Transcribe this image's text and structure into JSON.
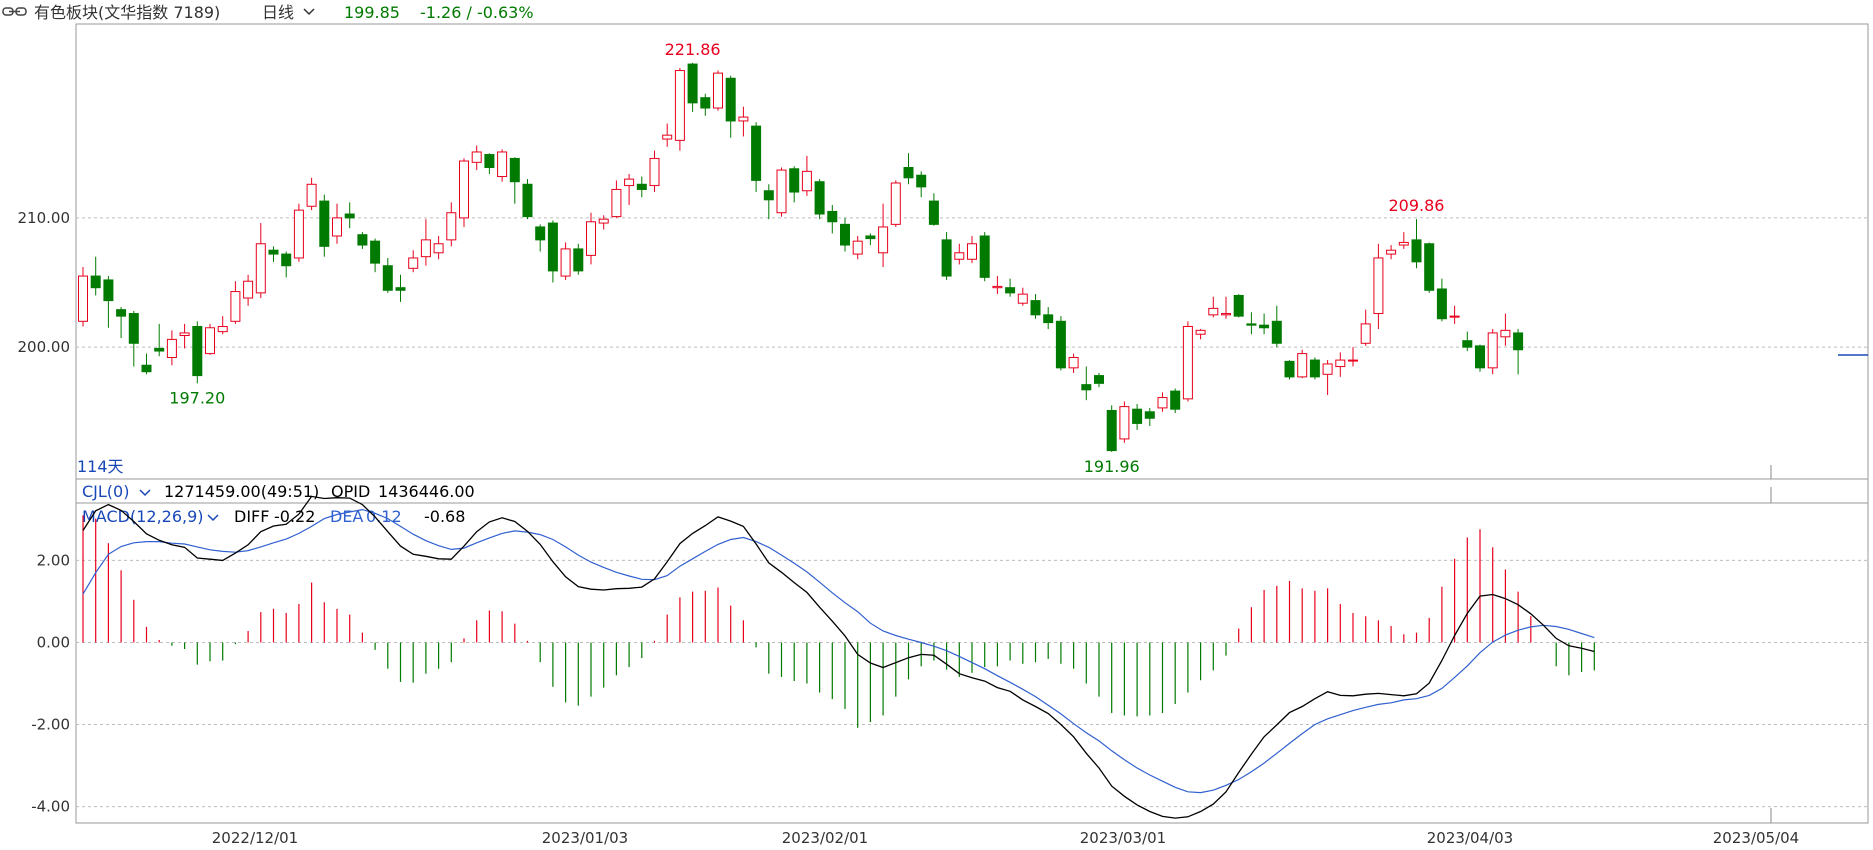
{
  "header": {
    "title": "有色板块(文华指数  7189)",
    "period": "日线",
    "last_price": "199.85",
    "change": "-1.26 / -0.63%"
  },
  "colors": {
    "up": "#e8001c",
    "down": "#007a00",
    "grid": "#bdbdbd",
    "diff_line": "#000000",
    "dea_line": "#3060d0",
    "label_blue": "#1848b8"
  },
  "price_panel": {
    "y_ticks": [
      "210.00",
      "200.00"
    ],
    "days_label": "114天",
    "annotations": {
      "high1": "221.86",
      "low1": "197.20",
      "low2": "191.96",
      "high2": "209.86"
    }
  },
  "volume_legend": {
    "name": "CJL(0)",
    "value": "1271459.00(49:51)",
    "opid_label": "OPID",
    "opid_value": "1436446.00"
  },
  "macd_panel": {
    "name": "MACD(12,26,9)",
    "diff_label": "DIFF",
    "diff_value": "-0.22",
    "dea_label": "DEA",
    "dea_value": "0.12",
    "macd_value": "-0.68",
    "y_ticks": [
      "2.00",
      "0.00",
      "-2.00",
      "-4.00"
    ]
  },
  "x_ticks": [
    "2022/12/01",
    "2023/01/03",
    "2023/02/01",
    "2023/03/01",
    "2023/04/03",
    "2023/05/04"
  ],
  "chart_data": {
    "type": "candlestick",
    "price_axis": {
      "min": 189.8,
      "max": 225.0
    },
    "macd_axis": {
      "min": -4.4,
      "max": 3.4
    },
    "candles": [
      [
        202.0,
        205.5,
        206.2,
        201.6
      ],
      [
        205.5,
        204.6,
        207.0,
        204.0
      ],
      [
        205.2,
        203.6,
        205.5,
        201.5
      ],
      [
        202.9,
        202.4,
        203.1,
        200.7
      ],
      [
        202.6,
        200.3,
        202.8,
        198.5
      ],
      [
        198.6,
        198.1,
        199.5,
        197.9
      ],
      [
        199.9,
        199.7,
        201.8,
        199.3
      ],
      [
        199.2,
        200.6,
        201.3,
        198.6
      ],
      [
        200.9,
        201.1,
        201.8,
        199.9
      ],
      [
        201.6,
        197.8,
        202.0,
        197.2
      ],
      [
        199.5,
        201.5,
        201.8,
        199.4
      ],
      [
        201.2,
        201.6,
        202.4,
        201.0
      ],
      [
        202.0,
        204.3,
        205.1,
        201.8
      ],
      [
        203.8,
        205.1,
        205.6,
        203.2
      ],
      [
        204.2,
        208.0,
        209.6,
        203.8
      ],
      [
        207.5,
        207.2,
        207.8,
        206.6
      ],
      [
        207.2,
        206.3,
        207.4,
        205.4
      ],
      [
        206.9,
        210.6,
        211.1,
        206.6
      ],
      [
        210.9,
        212.6,
        213.1,
        210.6
      ],
      [
        211.3,
        207.8,
        211.8,
        207.0
      ],
      [
        208.6,
        210.0,
        211.1,
        208.0
      ],
      [
        210.3,
        210.0,
        211.2,
        209.2
      ],
      [
        208.7,
        207.9,
        208.9,
        207.6
      ],
      [
        208.2,
        206.5,
        208.4,
        205.8
      ],
      [
        206.3,
        204.4,
        206.9,
        204.2
      ],
      [
        204.6,
        204.4,
        205.6,
        203.5
      ],
      [
        206.1,
        206.9,
        207.5,
        205.8
      ],
      [
        207.0,
        208.3,
        209.9,
        206.3
      ],
      [
        207.3,
        208.0,
        208.6,
        206.8
      ],
      [
        208.3,
        210.4,
        211.2,
        207.8
      ],
      [
        210.0,
        214.4,
        214.6,
        209.3
      ],
      [
        214.3,
        215.1,
        215.6,
        213.7
      ],
      [
        214.9,
        213.9,
        215.0,
        213.4
      ],
      [
        213.2,
        215.1,
        215.3,
        212.8
      ],
      [
        214.6,
        212.8,
        214.7,
        211.1
      ],
      [
        212.6,
        210.1,
        213.0,
        209.9
      ],
      [
        209.3,
        208.3,
        209.5,
        207.4
      ],
      [
        209.6,
        205.9,
        209.8,
        205.0
      ],
      [
        205.5,
        207.6,
        208.1,
        205.2
      ],
      [
        207.6,
        205.9,
        208.0,
        205.6
      ],
      [
        207.1,
        209.7,
        210.4,
        206.4
      ],
      [
        209.6,
        209.9,
        210.2,
        209.1
      ],
      [
        210.1,
        212.2,
        212.9,
        210.0
      ],
      [
        212.5,
        213.0,
        213.4,
        211.0
      ],
      [
        212.6,
        212.2,
        213.2,
        211.6
      ],
      [
        212.5,
        214.6,
        215.2,
        212.0
      ],
      [
        216.1,
        216.4,
        217.3,
        215.5
      ],
      [
        216.0,
        221.4,
        221.6,
        215.2
      ],
      [
        221.9,
        218.9,
        222.0,
        218.2
      ],
      [
        219.3,
        218.5,
        219.6,
        217.9
      ],
      [
        218.5,
        221.2,
        221.4,
        218.3
      ],
      [
        220.8,
        217.5,
        221.0,
        216.2
      ],
      [
        217.5,
        217.8,
        218.6,
        216.3
      ],
      [
        217.1,
        212.9,
        217.4,
        212.0
      ],
      [
        212.1,
        211.4,
        212.6,
        209.9
      ],
      [
        210.4,
        213.7,
        213.9,
        210.1
      ],
      [
        213.8,
        212.0,
        214.0,
        211.2
      ],
      [
        212.1,
        213.6,
        214.8,
        211.7
      ],
      [
        212.8,
        210.3,
        213.0,
        209.9
      ],
      [
        210.5,
        209.7,
        211.0,
        208.8
      ],
      [
        209.5,
        207.9,
        210.0,
        207.4
      ],
      [
        207.2,
        208.2,
        208.6,
        206.8
      ],
      [
        208.6,
        208.4,
        208.8,
        207.9
      ],
      [
        207.3,
        209.3,
        211.1,
        206.2
      ],
      [
        209.5,
        212.7,
        212.9,
        209.3
      ],
      [
        213.9,
        213.1,
        215.0,
        212.6
      ],
      [
        213.3,
        212.4,
        213.6,
        211.6
      ],
      [
        211.3,
        209.5,
        211.9,
        209.4
      ],
      [
        208.3,
        205.5,
        208.9,
        205.2
      ],
      [
        206.8,
        207.3,
        208.0,
        206.4
      ],
      [
        206.8,
        208.0,
        208.6,
        206.5
      ],
      [
        208.6,
        205.4,
        208.9,
        205.1
      ],
      [
        204.6,
        204.7,
        205.5,
        204.1
      ],
      [
        204.6,
        204.2,
        205.3,
        203.9
      ],
      [
        203.4,
        204.1,
        204.6,
        203.2
      ],
      [
        203.6,
        202.5,
        204.1,
        202.2
      ],
      [
        202.5,
        201.9,
        203.1,
        201.4
      ],
      [
        202.0,
        198.4,
        202.4,
        198.2
      ],
      [
        198.4,
        199.2,
        199.5,
        198.0
      ],
      [
        197.1,
        196.7,
        198.5,
        195.9
      ],
      [
        197.8,
        197.2,
        198.0,
        196.9
      ],
      [
        195.1,
        192.0,
        195.5,
        191.9
      ],
      [
        192.9,
        195.4,
        195.8,
        192.6
      ],
      [
        195.2,
        194.1,
        195.6,
        193.6
      ],
      [
        195.0,
        194.5,
        195.3,
        193.9
      ],
      [
        195.3,
        196.1,
        196.5,
        195.0
      ],
      [
        196.6,
        195.2,
        196.8,
        194.9
      ],
      [
        196.0,
        201.6,
        202.0,
        195.8
      ],
      [
        201.0,
        201.3,
        201.4,
        200.6
      ],
      [
        202.5,
        203.0,
        203.9,
        202.3
      ],
      [
        202.5,
        202.6,
        203.9,
        202.2
      ],
      [
        204.0,
        202.4,
        204.1,
        202.3
      ],
      [
        201.8,
        201.7,
        202.7,
        201.0
      ],
      [
        201.7,
        201.5,
        202.6,
        201.0
      ],
      [
        202.0,
        200.3,
        203.2,
        200.0
      ],
      [
        198.9,
        197.7,
        199.0,
        197.5
      ],
      [
        197.7,
        199.5,
        199.8,
        197.6
      ],
      [
        199.0,
        197.7,
        199.2,
        197.5
      ],
      [
        197.9,
        198.7,
        199.0,
        196.3
      ],
      [
        198.5,
        199.0,
        199.6,
        197.7
      ],
      [
        199.0,
        199.0,
        200.0,
        198.5
      ],
      [
        200.3,
        201.8,
        202.9,
        200.1
      ],
      [
        202.6,
        206.9,
        208.0,
        201.4
      ],
      [
        207.2,
        207.5,
        207.9,
        206.8
      ],
      [
        207.9,
        208.1,
        208.9,
        207.6
      ],
      [
        208.3,
        206.6,
        209.9,
        206.1
      ],
      [
        208.0,
        204.4,
        208.1,
        204.2
      ],
      [
        204.5,
        202.2,
        205.3,
        202.0
      ],
      [
        202.4,
        202.4,
        203.2,
        201.8
      ],
      [
        200.5,
        200.0,
        201.2,
        199.7
      ],
      [
        200.1,
        198.4,
        200.2,
        198.1
      ],
      [
        198.4,
        201.1,
        201.4,
        197.9
      ],
      [
        200.8,
        201.3,
        202.6,
        200.1
      ],
      [
        201.1,
        199.8,
        201.4,
        197.9
      ]
    ],
    "macd": {
      "diff": [
        2.73,
        3.21,
        3.36,
        3.22,
        2.95,
        2.65,
        2.49,
        2.38,
        2.32,
        2.06,
        2.03,
        2.0,
        2.18,
        2.38,
        2.7,
        2.84,
        2.88,
        3.13,
        3.56,
        3.51,
        3.53,
        3.52,
        3.36,
        3.06,
        2.7,
        2.35,
        2.15,
        2.1,
        2.04,
        2.03,
        2.35,
        2.7,
        2.94,
        3.04,
        2.95,
        2.71,
        2.39,
        1.97,
        1.6,
        1.36,
        1.3,
        1.28,
        1.31,
        1.32,
        1.35,
        1.55,
        1.97,
        2.41,
        2.66,
        2.85,
        3.06,
        2.96,
        2.83,
        2.4,
        1.94,
        1.71,
        1.46,
        1.22,
        0.86,
        0.52,
        0.16,
        -0.29,
        -0.5,
        -0.61,
        -0.49,
        -0.37,
        -0.29,
        -0.31,
        -0.53,
        -0.76,
        -0.86,
        -0.94,
        -1.1,
        -1.19,
        -1.4,
        -1.56,
        -1.73,
        -2.0,
        -2.3,
        -2.7,
        -3.06,
        -3.5,
        -3.75,
        -3.96,
        -4.12,
        -4.24,
        -4.28,
        -4.25,
        -4.12,
        -3.94,
        -3.64,
        -3.17,
        -2.72,
        -2.3,
        -2.01,
        -1.71,
        -1.56,
        -1.37,
        -1.2,
        -1.29,
        -1.3,
        -1.26,
        -1.24,
        -1.27,
        -1.3,
        -1.25,
        -0.99,
        -0.44,
        0.17,
        0.71,
        1.13,
        1.17,
        1.07,
        0.92,
        0.7,
        0.42,
        0.1,
        -0.08,
        -0.14,
        -0.22
      ],
      "dea": [
        1.18,
        1.7,
        2.15,
        2.34,
        2.43,
        2.46,
        2.46,
        2.42,
        2.4,
        2.33,
        2.26,
        2.22,
        2.2,
        2.24,
        2.33,
        2.43,
        2.52,
        2.66,
        2.83,
        3.02,
        3.12,
        3.18,
        3.24,
        3.15,
        3.02,
        2.83,
        2.64,
        2.48,
        2.36,
        2.27,
        2.3,
        2.43,
        2.55,
        2.66,
        2.72,
        2.69,
        2.63,
        2.51,
        2.33,
        2.13,
        1.96,
        1.83,
        1.71,
        1.62,
        1.54,
        1.53,
        1.63,
        1.86,
        2.04,
        2.22,
        2.39,
        2.51,
        2.56,
        2.46,
        2.32,
        2.13,
        1.93,
        1.72,
        1.47,
        1.21,
        0.97,
        0.75,
        0.47,
        0.28,
        0.17,
        0.08,
        0.0,
        -0.09,
        -0.2,
        -0.34,
        -0.49,
        -0.64,
        -0.81,
        -0.97,
        -1.14,
        -1.32,
        -1.53,
        -1.74,
        -1.98,
        -2.2,
        -2.4,
        -2.64,
        -2.86,
        -3.06,
        -3.23,
        -3.38,
        -3.53,
        -3.64,
        -3.66,
        -3.6,
        -3.48,
        -3.34,
        -3.15,
        -2.94,
        -2.7,
        -2.46,
        -2.22,
        -2.0,
        -1.86,
        -1.76,
        -1.66,
        -1.58,
        -1.51,
        -1.47,
        -1.4,
        -1.37,
        -1.29,
        -1.12,
        -0.85,
        -0.57,
        -0.25,
        0.01,
        0.18,
        0.3,
        0.38,
        0.42,
        0.39,
        0.32,
        0.22,
        0.12
      ]
    }
  }
}
